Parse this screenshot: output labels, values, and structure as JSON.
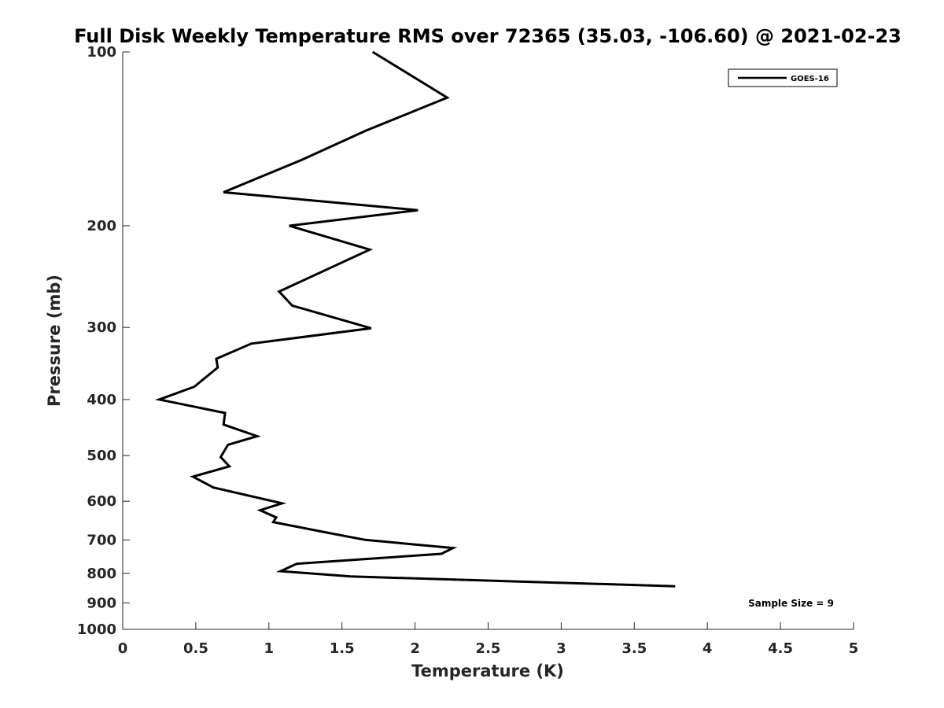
{
  "chart_data": {
    "type": "line",
    "title": "Full Disk Weekly Temperature RMS over 72365 (35.03, -106.60) @ 2021-02-23",
    "xlabel": "Temperature (K)",
    "ylabel": "Pressure (mb)",
    "xlim": [
      0,
      5
    ],
    "ylim": [
      100,
      1000
    ],
    "y_scale": "log",
    "y_reversed": true,
    "grid": false,
    "legend_position": "top-right",
    "x_ticks": [
      "0",
      "0.5",
      "1",
      "1.5",
      "2",
      "2.5",
      "3",
      "3.5",
      "4",
      "4.5",
      "5"
    ],
    "x_tick_values": [
      0,
      0.5,
      1,
      1.5,
      2,
      2.5,
      3,
      3.5,
      4,
      4.5,
      5
    ],
    "y_ticks": [
      "100",
      "200",
      "300",
      "400",
      "500",
      "600",
      "700",
      "800",
      "900",
      "1000"
    ],
    "y_tick_values": [
      100,
      200,
      300,
      400,
      500,
      600,
      700,
      800,
      900,
      1000
    ],
    "series": [
      {
        "name": "GOES-16",
        "color": "#000000",
        "x": [
          1.71,
          2.22,
          1.66,
          1.22,
          0.69,
          2.02,
          1.14,
          1.69,
          1.07,
          1.16,
          1.7,
          0.88,
          0.64,
          0.65,
          0.49,
          0.25,
          0.7,
          0.69,
          0.92,
          0.72,
          0.67,
          0.73,
          0.48,
          0.62,
          1.09,
          0.94,
          1.05,
          1.03,
          1.4,
          1.66,
          2.26,
          2.18,
          1.19,
          1.08,
          1.56,
          3.78
        ],
        "y": [
          100,
          120,
          137,
          154,
          175,
          188,
          200,
          220,
          260,
          275,
          301,
          320,
          340,
          352,
          380,
          400,
          422,
          442,
          463,
          479,
          503,
          522,
          544,
          568,
          605,
          622,
          640,
          652,
          680,
          700,
          723,
          740,
          770,
          793,
          810,
          842
        ]
      }
    ],
    "annotations": [
      {
        "text": "Sample Size = 9",
        "position": "bottom-right"
      }
    ]
  }
}
